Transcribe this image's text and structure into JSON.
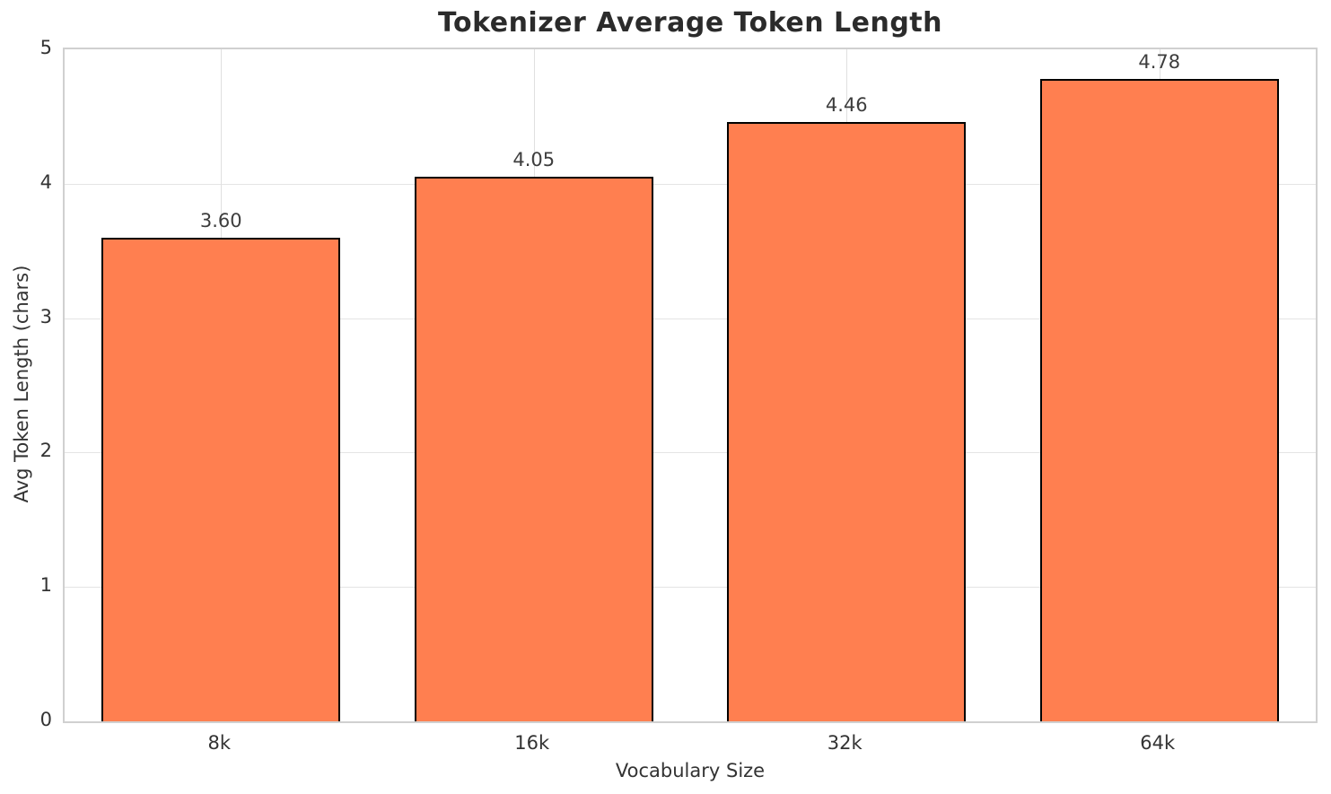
{
  "chart_data": {
    "type": "bar",
    "title": "Tokenizer Average Token Length",
    "categories": [
      "8k",
      "16k",
      "32k",
      "64k"
    ],
    "values": [
      3.6,
      4.05,
      4.46,
      4.78
    ],
    "value_labels": [
      "3.60",
      "4.05",
      "4.46",
      "4.78"
    ],
    "xlabel": "Vocabulary Size",
    "ylabel": "Avg Token Length (chars)",
    "ylim": [
      0,
      5
    ],
    "yticks": [
      0,
      1,
      2,
      3,
      4,
      5
    ],
    "grid": true,
    "legend": "none",
    "bar_color": "#FF7F50",
    "bar_edge_color": "#000000",
    "bar_width_fraction": 0.764,
    "gridline_color": "#e4e4e4",
    "spine_color": "#d0d0d0",
    "title_color": "#2b2b2b",
    "label_color": "#333333"
  }
}
